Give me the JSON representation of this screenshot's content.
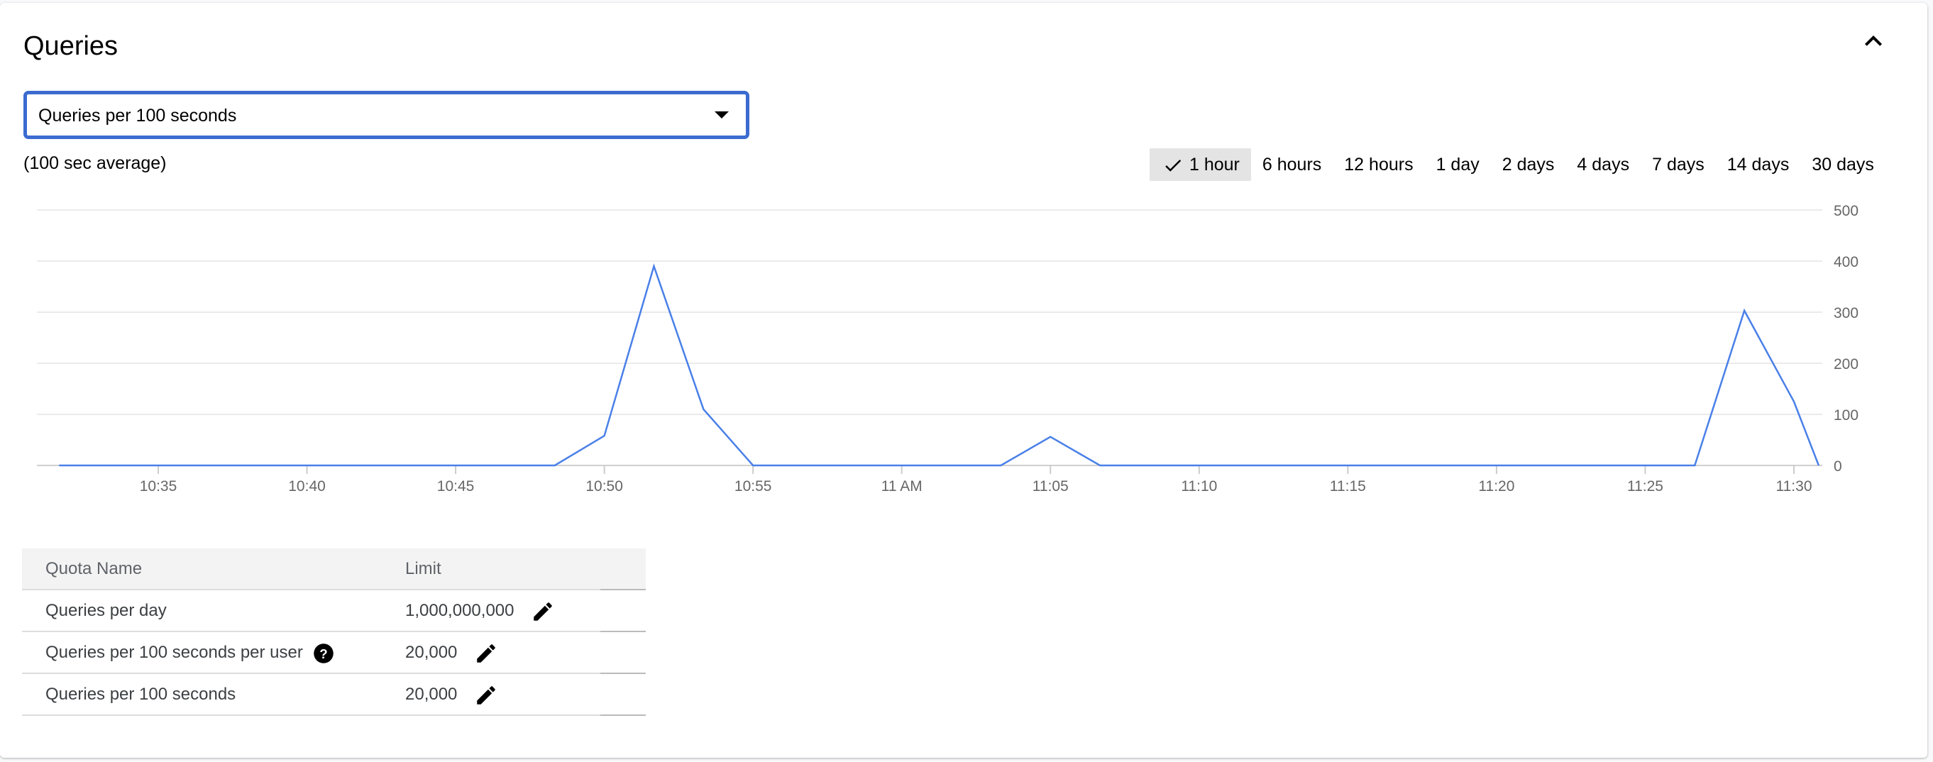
{
  "card": {
    "title": "Queries",
    "collapse_icon": "chevron-up-icon",
    "metric_select": {
      "value": "Queries per 100 seconds"
    },
    "subtitle": "(100 sec average)",
    "time_ranges": [
      {
        "label": "1 hour",
        "selected": true
      },
      {
        "label": "6 hours",
        "selected": false
      },
      {
        "label": "12 hours",
        "selected": false
      },
      {
        "label": "1 day",
        "selected": false
      },
      {
        "label": "2 days",
        "selected": false
      },
      {
        "label": "4 days",
        "selected": false
      },
      {
        "label": "7 days",
        "selected": false
      },
      {
        "label": "14 days",
        "selected": false
      },
      {
        "label": "30 days",
        "selected": false
      }
    ]
  },
  "chart_data": {
    "type": "line",
    "ylim": [
      0,
      500
    ],
    "yticks": [
      "0",
      "100",
      "200",
      "300",
      "400",
      "500"
    ],
    "xticks": [
      "10:35",
      "10:40",
      "10:45",
      "10:50",
      "10:55",
      "11 AM",
      "11:05",
      "11:10",
      "11:15",
      "11:20",
      "11:25",
      "11:30"
    ],
    "grid": true,
    "y_axis_side": "right",
    "line_color": "#4a80e8",
    "points": [
      [
        "10:31:40",
        0
      ],
      [
        "10:48:20",
        0
      ],
      [
        "10:50:00",
        58
      ],
      [
        "10:51:40",
        390
      ],
      [
        "10:53:20",
        110
      ],
      [
        "10:55:00",
        0
      ],
      [
        "11:03:20",
        0
      ],
      [
        "11:05:00",
        56
      ],
      [
        "11:06:40",
        0
      ],
      [
        "11:26:40",
        0
      ],
      [
        "11:28:20",
        303
      ],
      [
        "11:30:00",
        125
      ],
      [
        "11:30:50",
        0
      ]
    ]
  },
  "quota_table": {
    "columns": [
      "Quota Name",
      "Limit"
    ],
    "rows": [
      {
        "name": "Queries per day",
        "limit": "1,000,000,000",
        "help": false
      },
      {
        "name": "Queries per 100 seconds per user",
        "limit": "20,000",
        "help": true
      },
      {
        "name": "Queries per 100 seconds",
        "limit": "20,000",
        "help": false
      }
    ],
    "edit_icon": "pencil-icon",
    "help_icon": "help-circle-icon"
  }
}
